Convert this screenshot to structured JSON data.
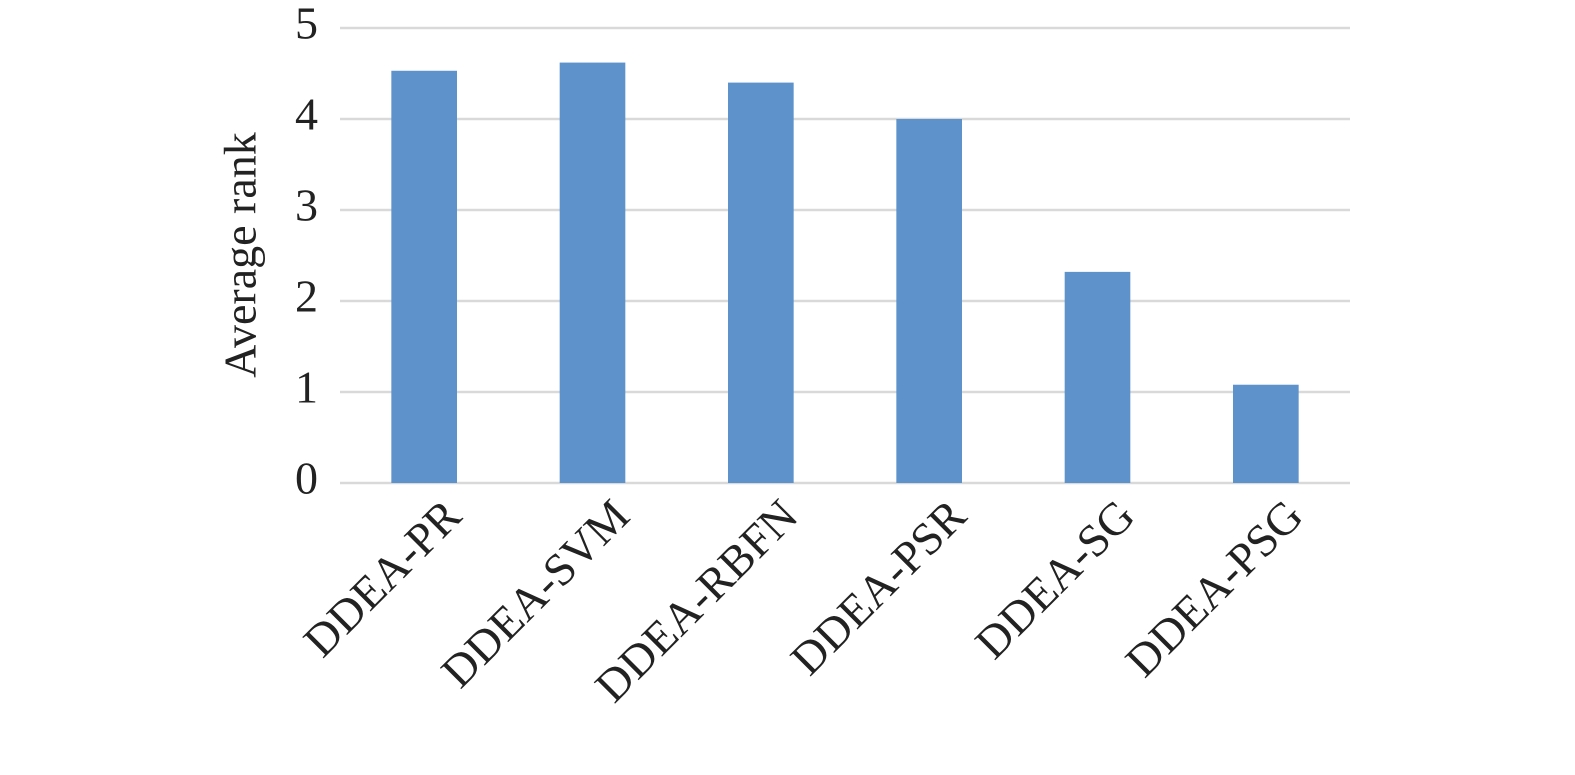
{
  "chart_data": {
    "type": "bar",
    "y_label": "Average rank",
    "categories": [
      "DDEA-PR",
      "DDEA-SVM",
      "DDEA-RBFN",
      "DDEA-PSR",
      "DDEA-SG",
      "DDEA-PSG"
    ],
    "values": [
      4.53,
      4.62,
      4.4,
      4.0,
      2.32,
      1.08
    ],
    "color": "#5e92cb",
    "ylim": [
      0,
      5
    ],
    "yticks": [
      0,
      1,
      2,
      3,
      4,
      5
    ],
    "grid": true
  }
}
